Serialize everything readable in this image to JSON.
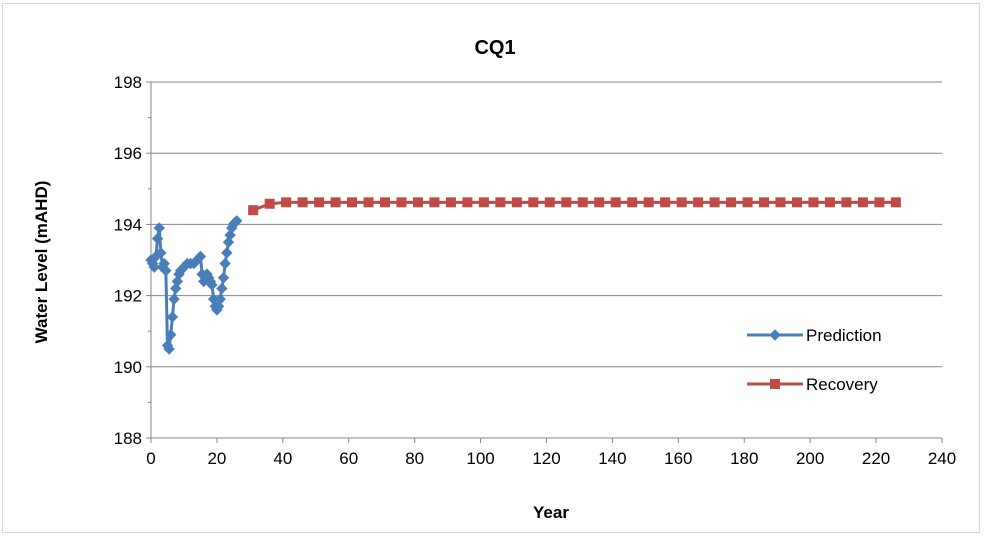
{
  "chart_data": {
    "type": "line",
    "title": "CQ1",
    "xlabel": "Year",
    "ylabel": "Water Level (mAHD)",
    "xlim": [
      0,
      240
    ],
    "ylim": [
      188,
      198
    ],
    "x_ticks": [
      0,
      20,
      40,
      60,
      80,
      100,
      120,
      140,
      160,
      180,
      200,
      220,
      240
    ],
    "y_ticks": [
      188,
      190,
      192,
      194,
      196,
      198
    ],
    "grid": "horizontal",
    "legend": "right",
    "series": [
      {
        "name": "Prediction",
        "color": "#4a7ebb",
        "marker": "diamond",
        "x": [
          0,
          0.5,
          1,
          1.5,
          2,
          2.5,
          3,
          3.5,
          4,
          4.5,
          5,
          5.5,
          6,
          6.5,
          7,
          7.5,
          8,
          8.5,
          9,
          10,
          11,
          12,
          13,
          14,
          15,
          15.5,
          16,
          16.5,
          17,
          17.5,
          18,
          18.5,
          19,
          19.5,
          20,
          20.5,
          21,
          21.5,
          22,
          22.5,
          23,
          23.5,
          24,
          24.5,
          25,
          25.5,
          26
        ],
        "y": [
          193.0,
          192.9,
          192.8,
          193.1,
          193.6,
          193.9,
          193.2,
          192.8,
          192.9,
          192.7,
          190.6,
          190.5,
          190.9,
          191.4,
          191.9,
          192.2,
          192.4,
          192.6,
          192.7,
          192.8,
          192.9,
          192.9,
          192.9,
          193.0,
          193.1,
          192.6,
          192.4,
          192.5,
          192.6,
          192.5,
          192.4,
          192.3,
          191.9,
          191.7,
          191.6,
          191.7,
          191.9,
          192.2,
          192.5,
          192.9,
          193.2,
          193.5,
          193.7,
          193.9,
          194.0,
          194.05,
          194.1
        ]
      },
      {
        "name": "Recovery",
        "color": "#be4b48",
        "marker": "square",
        "x": [
          31,
          36,
          41,
          46,
          51,
          56,
          61,
          66,
          71,
          76,
          81,
          86,
          91,
          96,
          101,
          106,
          111,
          116,
          121,
          126,
          131,
          136,
          141,
          146,
          151,
          156,
          161,
          166,
          171,
          176,
          181,
          186,
          191,
          196,
          201,
          206,
          211,
          216,
          221,
          226
        ],
        "y": [
          194.4,
          194.58,
          194.62,
          194.62,
          194.62,
          194.62,
          194.62,
          194.62,
          194.62,
          194.62,
          194.62,
          194.62,
          194.62,
          194.62,
          194.62,
          194.62,
          194.62,
          194.62,
          194.62,
          194.62,
          194.62,
          194.62,
          194.62,
          194.62,
          194.62,
          194.62,
          194.62,
          194.62,
          194.62,
          194.62,
          194.62,
          194.62,
          194.62,
          194.62,
          194.62,
          194.62,
          194.62,
          194.62,
          194.62,
          194.62
        ]
      }
    ]
  }
}
